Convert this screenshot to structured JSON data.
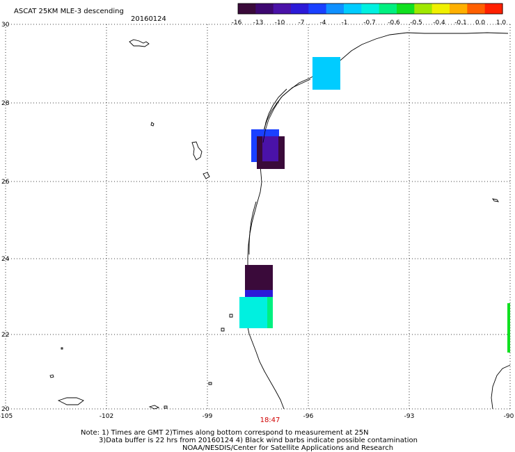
{
  "header": {
    "title": "ASCAT 25KM MLE-3 descending",
    "date": "20160124"
  },
  "colorbar": {
    "colors": [
      "#3a0a3a",
      "#3d0870",
      "#4a12a8",
      "#2c1ad8",
      "#1a40ff",
      "#0f90ff",
      "#00ccff",
      "#00f0e0",
      "#00f080",
      "#10e020",
      "#a0e800",
      "#f0f000",
      "#ffb000",
      "#ff6000",
      "#ff2000"
    ],
    "ticks": [
      "-16",
      "-13",
      "-10",
      "-7",
      "-4",
      "-1",
      "-0.7",
      "-0.6",
      "-0.5",
      "-0.4",
      "-0.1",
      "0.0",
      "1.0"
    ]
  },
  "map": {
    "lon_ticks": [
      "-105",
      "-102",
      "-99",
      "-96",
      "-93",
      "-90"
    ],
    "lat_ticks": [
      "30",
      "28",
      "26",
      "24",
      "22",
      "20"
    ],
    "time_label": "18:47"
  },
  "footer": {
    "line1": "Note: 1) Times are GMT 2)Times along bottom correspond to measurement at 25N",
    "line2": "3)Data buffer is 22 hrs from 20160124 4) Black wind barbs indicate possible contamination",
    "line3": "NOAA/NESDIS/Center for Satellite Applications and Research"
  }
}
